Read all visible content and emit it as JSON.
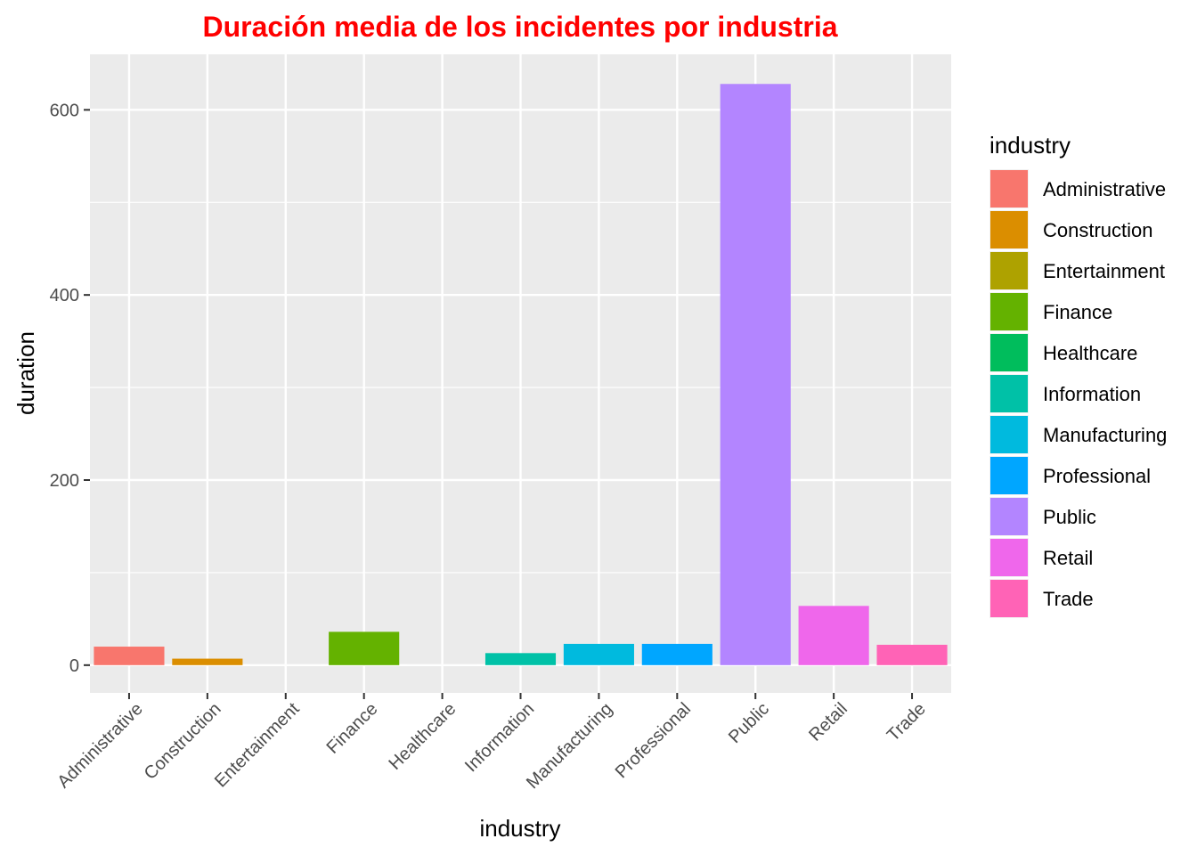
{
  "chart_data": {
    "type": "bar",
    "title": "Duración media de los incidentes por industria",
    "xlabel": "industry",
    "ylabel": "duration",
    "categories": [
      "Administrative",
      "Construction",
      "Entertainment",
      "Finance",
      "Healthcare",
      "Information",
      "Manufacturing",
      "Professional",
      "Public",
      "Retail",
      "Trade"
    ],
    "values": [
      20,
      7,
      0,
      36,
      0,
      13,
      23,
      23,
      628,
      64,
      22
    ],
    "colors": [
      "#F8766D",
      "#DB8E00",
      "#AEA200",
      "#64B200",
      "#00BD5C",
      "#00C1A7",
      "#00BADE",
      "#00A6FF",
      "#B385FF",
      "#EF67EB",
      "#FF63B6"
    ],
    "ylim": [
      -30,
      660
    ],
    "yticks": [
      0,
      200,
      400,
      600
    ],
    "grid": true,
    "background": "#EBEBEB",
    "legend": {
      "title": "industry",
      "position": "right"
    }
  }
}
